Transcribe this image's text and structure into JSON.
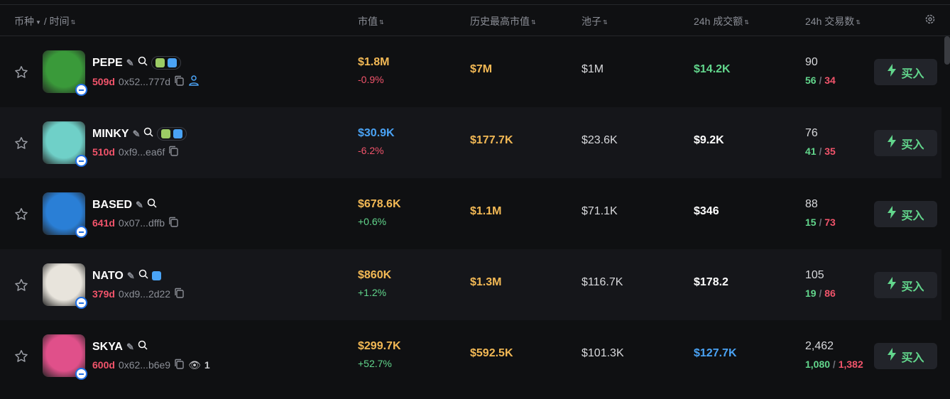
{
  "header": {
    "coin": "币种",
    "sep": "/",
    "time": "时间",
    "market_cap": "市值",
    "ath_cap": "历史最高市值",
    "pool": "池子",
    "volume": "24h 成交额",
    "txns": "24h 交易数"
  },
  "colors": {
    "yellow": "#f3b955",
    "green": "#62d68c",
    "red": "#f2546b",
    "blue": "#4aa3f5"
  },
  "buy_label": "买入",
  "rows": [
    {
      "name": "PEPE",
      "age": "509d",
      "address": "0x52...777d",
      "market_cap": "$1.8M",
      "mc_color": "y",
      "change": "-0.9%",
      "change_color": "r",
      "ath": "$7M",
      "pool": "$1M",
      "volume": "$14.2K",
      "vol_color": "g",
      "txns": "90",
      "buys": "56",
      "sells": "34",
      "tags": true,
      "extra": "user-icon",
      "avatar": "#3a9a3a"
    },
    {
      "name": "MINKY",
      "age": "510d",
      "address": "0xf9...ea6f",
      "market_cap": "$30.9K",
      "mc_color": "b",
      "change": "-6.2%",
      "change_color": "r",
      "ath": "$177.7K",
      "pool": "$23.6K",
      "volume": "$9.2K",
      "vol_color": "w",
      "txns": "76",
      "buys": "41",
      "sells": "35",
      "tags": true,
      "avatar": "#6fd0c8"
    },
    {
      "name": "BASED",
      "age": "641d",
      "address": "0x07...dffb",
      "market_cap": "$678.6K",
      "mc_color": "y",
      "change": "+0.6%",
      "change_color": "g",
      "ath": "$1.1M",
      "pool": "$71.1K",
      "volume": "$346",
      "vol_color": "w",
      "txns": "88",
      "buys": "15",
      "sells": "73",
      "avatar": "#2a7fd6"
    },
    {
      "name": "NATO",
      "age": "379d",
      "address": "0xd9...2d22",
      "market_cap": "$860K",
      "mc_color": "y",
      "change": "+1.2%",
      "change_color": "g",
      "ath": "$1.3M",
      "pool": "$116.7K",
      "volume": "$178.2",
      "vol_color": "w",
      "txns": "105",
      "buys": "19",
      "sells": "86",
      "twitter": true,
      "avatar": "#e8e4dc"
    },
    {
      "name": "SKYA",
      "age": "600d",
      "address": "0x62...b6e9",
      "market_cap": "$299.7K",
      "mc_color": "y",
      "change": "+52.7%",
      "change_color": "g",
      "ath": "$592.5K",
      "pool": "$101.3K",
      "volume": "$127.7K",
      "vol_color": "b",
      "txns": "2,462",
      "buys": "1,080",
      "sells": "1,382",
      "watchers": "1",
      "avatar": "#e0508a"
    }
  ]
}
